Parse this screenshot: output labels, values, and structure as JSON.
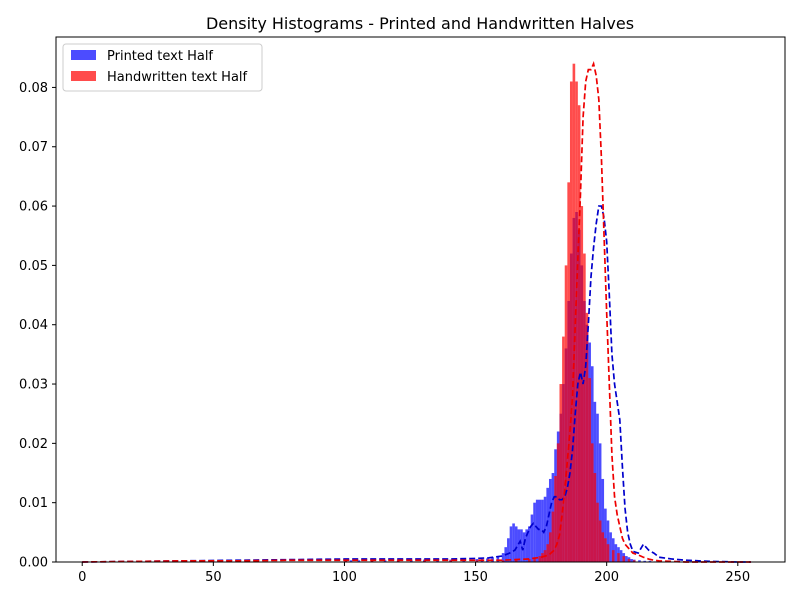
{
  "chart_data": {
    "type": "bar",
    "title": "Density Histograms - Printed and Handwritten Halves",
    "xlabel": "",
    "ylabel": "",
    "xlim": [
      -10,
      268
    ],
    "ylim": [
      0,
      0.0885
    ],
    "xticks": [
      0,
      50,
      100,
      150,
      200,
      250
    ],
    "xtick_labels": [
      "0",
      "50",
      "100",
      "150",
      "200",
      "250"
    ],
    "yticks": [
      0.0,
      0.01,
      0.02,
      0.03,
      0.04,
      0.05,
      0.06,
      0.07,
      0.08
    ],
    "ytick_labels": [
      "0.00",
      "0.01",
      "0.02",
      "0.03",
      "0.04",
      "0.05",
      "0.06",
      "0.07",
      "0.08"
    ],
    "grid": false,
    "legend_position": "top-left",
    "colors": {
      "printed": "#0000ff",
      "handwritten": "#ff0000"
    },
    "series": [
      {
        "name": "Printed text Half",
        "kind": "histogram",
        "color": "#0000ff",
        "bin_width": 1,
        "x": [
          100,
          102,
          105,
          110,
          115,
          120,
          125,
          130,
          135,
          140,
          145,
          150,
          152,
          154,
          156,
          158,
          160,
          161,
          162,
          163,
          164,
          165,
          166,
          167,
          168,
          169,
          170,
          171,
          172,
          173,
          174,
          175,
          176,
          177,
          178,
          179,
          180,
          181,
          182,
          183,
          184,
          185,
          186,
          187,
          188,
          189,
          190,
          191,
          192,
          193,
          194,
          195,
          196,
          197,
          198,
          199,
          200,
          201,
          202,
          203,
          204,
          205,
          206,
          207,
          208,
          209,
          210,
          212,
          214,
          216,
          218,
          220
        ],
        "values": [
          0.0003,
          0.0003,
          0.0003,
          0.0003,
          0.0003,
          0.0003,
          0.0003,
          0.0004,
          0.0004,
          0.0004,
          0.0005,
          0.0005,
          0.0005,
          0.0006,
          0.0008,
          0.001,
          0.0015,
          0.0025,
          0.004,
          0.006,
          0.0065,
          0.006,
          0.0055,
          0.0055,
          0.005,
          0.0055,
          0.006,
          0.008,
          0.01,
          0.0105,
          0.0105,
          0.0105,
          0.011,
          0.0125,
          0.014,
          0.015,
          0.019,
          0.022,
          0.025,
          0.03,
          0.036,
          0.044,
          0.052,
          0.058,
          0.059,
          0.056,
          0.05,
          0.044,
          0.04,
          0.037,
          0.033,
          0.027,
          0.025,
          0.02,
          0.014,
          0.009,
          0.007,
          0.005,
          0.004,
          0.003,
          0.0025,
          0.002,
          0.0015,
          0.001,
          0.0008,
          0.0005,
          0.0004,
          0.0003,
          0.0002,
          0.0002,
          0.0001,
          0.0001
        ]
      },
      {
        "name": "Handwritten text Half",
        "kind": "histogram",
        "color": "#ff0000",
        "bin_width": 1,
        "x": [
          100,
          110,
          120,
          130,
          140,
          150,
          160,
          165,
          170,
          172,
          174,
          175,
          176,
          177,
          178,
          179,
          180,
          181,
          182,
          183,
          184,
          185,
          186,
          187,
          188,
          189,
          190,
          191,
          192,
          193,
          194,
          195,
          196,
          197,
          198,
          199,
          200,
          202,
          204,
          206,
          208,
          210
        ],
        "values": [
          0.0002,
          0.0002,
          0.0002,
          0.0002,
          0.0003,
          0.0003,
          0.0003,
          0.0004,
          0.0005,
          0.0008,
          0.001,
          0.0015,
          0.002,
          0.003,
          0.005,
          0.0085,
          0.0145,
          0.02,
          0.03,
          0.038,
          0.05,
          0.064,
          0.081,
          0.084,
          0.081,
          0.077,
          0.06,
          0.052,
          0.042,
          0.031,
          0.02,
          0.015,
          0.01,
          0.007,
          0.005,
          0.004,
          0.003,
          0.002,
          0.0015,
          0.001,
          0.0005,
          0.0003
        ]
      },
      {
        "name": "",
        "kind": "line",
        "style": "dashed",
        "color": "#0000cc",
        "x": [
          0,
          20,
          40,
          60,
          80,
          100,
          120,
          140,
          150,
          155,
          160,
          163,
          165,
          167,
          168,
          169,
          170,
          171,
          172,
          173,
          174,
          175,
          176,
          177,
          178,
          179,
          180,
          181,
          182,
          183,
          184,
          185,
          186,
          187,
          188,
          189,
          190,
          191,
          192,
          193,
          194,
          195,
          196,
          197,
          198,
          199,
          200,
          201,
          202,
          203,
          204,
          205,
          206,
          207,
          208,
          209,
          210,
          212,
          214,
          216,
          218,
          220,
          225,
          230,
          240,
          250,
          255
        ],
        "y": [
          0.0,
          0.0001,
          0.0002,
          0.0003,
          0.0004,
          0.0005,
          0.0005,
          0.0005,
          0.0006,
          0.0007,
          0.001,
          0.0015,
          0.002,
          0.0035,
          0.002,
          0.004,
          0.005,
          0.006,
          0.0065,
          0.006,
          0.0055,
          0.0055,
          0.005,
          0.006,
          0.008,
          0.01,
          0.011,
          0.011,
          0.0105,
          0.0105,
          0.011,
          0.0125,
          0.015,
          0.019,
          0.025,
          0.03,
          0.032,
          0.03,
          0.033,
          0.04,
          0.048,
          0.053,
          0.057,
          0.06,
          0.06,
          0.058,
          0.054,
          0.045,
          0.035,
          0.03,
          0.027,
          0.024,
          0.016,
          0.009,
          0.005,
          0.003,
          0.0018,
          0.0015,
          0.003,
          0.002,
          0.0015,
          0.0008,
          0.0005,
          0.0003,
          0.0001,
          0.0,
          0.0
        ]
      },
      {
        "name": "",
        "kind": "line",
        "style": "dashed",
        "color": "#ee0000",
        "x": [
          0,
          20,
          40,
          60,
          80,
          100,
          120,
          140,
          150,
          160,
          165,
          170,
          175,
          178,
          180,
          181,
          182,
          183,
          184,
          185,
          186,
          187,
          188,
          189,
          190,
          191,
          192,
          193,
          194,
          195,
          196,
          197,
          198,
          199,
          200,
          201,
          202,
          203,
          204,
          205,
          206,
          207,
          208,
          209,
          210,
          212,
          214,
          216,
          218,
          220,
          225,
          230,
          240,
          250,
          255
        ],
        "y": [
          0.0,
          0.0001,
          0.0002,
          0.0002,
          0.0003,
          0.0003,
          0.0003,
          0.0003,
          0.0003,
          0.0003,
          0.0004,
          0.0005,
          0.0008,
          0.0012,
          0.002,
          0.003,
          0.0045,
          0.008,
          0.012,
          0.017,
          0.022,
          0.028,
          0.04,
          0.051,
          0.062,
          0.075,
          0.081,
          0.083,
          0.083,
          0.084,
          0.082,
          0.078,
          0.068,
          0.055,
          0.042,
          0.03,
          0.018,
          0.011,
          0.008,
          0.006,
          0.004,
          0.003,
          0.0025,
          0.002,
          0.0015,
          0.0012,
          0.0008,
          0.0005,
          0.0003,
          0.0002,
          0.0001,
          0.0,
          0.0,
          0.0,
          0.0
        ]
      }
    ]
  }
}
